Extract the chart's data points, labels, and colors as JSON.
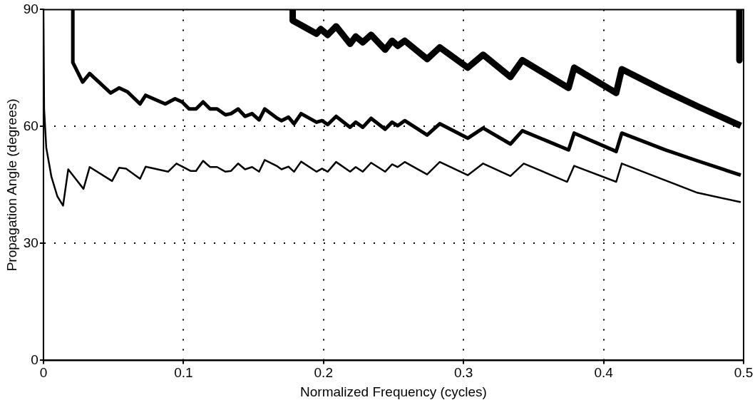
{
  "chart_data": {
    "type": "line",
    "xlabel": "Normalized Frequency (cycles)",
    "ylabel": "Propagation Angle (degrees)",
    "xlim": [
      0,
      0.5
    ],
    "ylim": [
      0,
      90
    ],
    "xticks": [
      0,
      0.1,
      0.2,
      0.3,
      0.4,
      0.5
    ],
    "yticks": [
      0,
      30,
      60,
      90
    ],
    "grid": true,
    "legend": false,
    "marker": "none",
    "line_style": "solid",
    "series": [
      {
        "color": "#000000",
        "x": [
          0,
          0.0005,
          0.002,
          0.0057,
          0.0099,
          0.014,
          0.0177,
          0.0286,
          0.033,
          0.049,
          0.054,
          0.059,
          0.069,
          0.073,
          0.089,
          0.095,
          0.105,
          0.109,
          0.114,
          0.119,
          0.124,
          0.13,
          0.134,
          0.139,
          0.144,
          0.149,
          0.154,
          0.158,
          0.167,
          0.17,
          0.175,
          0.179,
          0.184,
          0.195,
          0.199,
          0.203,
          0.209,
          0.219,
          0.223,
          0.228,
          0.234,
          0.244,
          0.249,
          0.253,
          0.258,
          0.274,
          0.283,
          0.303,
          0.314,
          0.3335,
          0.343,
          0.374,
          0.379,
          0.409,
          0.413,
          0.444,
          0.467,
          0.498
        ],
        "values": [
          90,
          64.5,
          54.6,
          47.1,
          42.1,
          39.7,
          49,
          44,
          49.6,
          46,
          49.4,
          49.2,
          46.6,
          49.7,
          48.4,
          50.5,
          48.6,
          48.6,
          51.2,
          49.6,
          49.6,
          48.4,
          48.6,
          50.5,
          49,
          49.6,
          48.4,
          51.4,
          49.8,
          49,
          49.7,
          48.4,
          51,
          48.4,
          49.2,
          48.4,
          50.9,
          48.4,
          49.6,
          48.4,
          50.7,
          48.4,
          50.3,
          49.6,
          50.9,
          47.7,
          50.9,
          47.5,
          50.5,
          47.3,
          50.5,
          45.8,
          49.9,
          45.8,
          50.5,
          46.2,
          43,
          40.6
        ]
      },
      {
        "color": "#000000",
        "x": [
          0.021,
          0.021,
          0.028,
          0.033,
          0.048,
          0.054,
          0.06,
          0.069,
          0.073,
          0.087,
          0.094,
          0.099,
          0.104,
          0.109,
          0.114,
          0.119,
          0.124,
          0.13,
          0.134,
          0.139,
          0.144,
          0.149,
          0.154,
          0.158,
          0.167,
          0.17,
          0.175,
          0.179,
          0.184,
          0.195,
          0.199,
          0.203,
          0.209,
          0.219,
          0.223,
          0.228,
          0.234,
          0.244,
          0.249,
          0.253,
          0.258,
          0.274,
          0.283,
          0.303,
          0.314,
          0.3335,
          0.342,
          0.375,
          0.379,
          0.409,
          0.413,
          0.444,
          0.467,
          0.498
        ],
        "values": [
          90,
          76.4,
          71.4,
          73.6,
          68.6,
          69.9,
          68.9,
          65.8,
          68,
          65.8,
          67.1,
          66.3,
          64.5,
          64.5,
          66.3,
          64.5,
          64.5,
          63,
          63.3,
          64.5,
          62.6,
          63.3,
          61.7,
          64.5,
          62.1,
          61.5,
          62.4,
          60.7,
          63.3,
          61.1,
          61.5,
          60.5,
          62.6,
          59.8,
          61.1,
          59.8,
          62.1,
          59.3,
          61.1,
          60.2,
          61.5,
          57.8,
          60.7,
          57,
          59.6,
          55.5,
          58.9,
          54,
          58.3,
          53.6,
          58.3,
          54,
          51.2,
          47.5
        ]
      },
      {
        "color": "#000000",
        "x": [
          0.178,
          0.178,
          0.195,
          0.198,
          0.203,
          0.209,
          0.219,
          0.223,
          0.228,
          0.234,
          0.244,
          0.249,
          0.253,
          0.258,
          0.274,
          0.283,
          0.303,
          0.314,
          0.3335,
          0.342,
          0.375,
          0.379,
          0.409,
          0.413,
          0.444,
          0.467,
          0.498
        ],
        "values": [
          90,
          87.2,
          83.8,
          85,
          83.5,
          85.7,
          81.2,
          83.1,
          81.6,
          83.5,
          79.7,
          82,
          80.7,
          82,
          77.3,
          80.3,
          75.1,
          78.4,
          72.7,
          77,
          69.9,
          75.1,
          68.6,
          74.7,
          69.1,
          65.2,
          60.2
        ]
      },
      {
        "color": "#000000",
        "x": [
          0.497,
          0.497
        ],
        "values": [
          90,
          77
        ]
      }
    ]
  }
}
